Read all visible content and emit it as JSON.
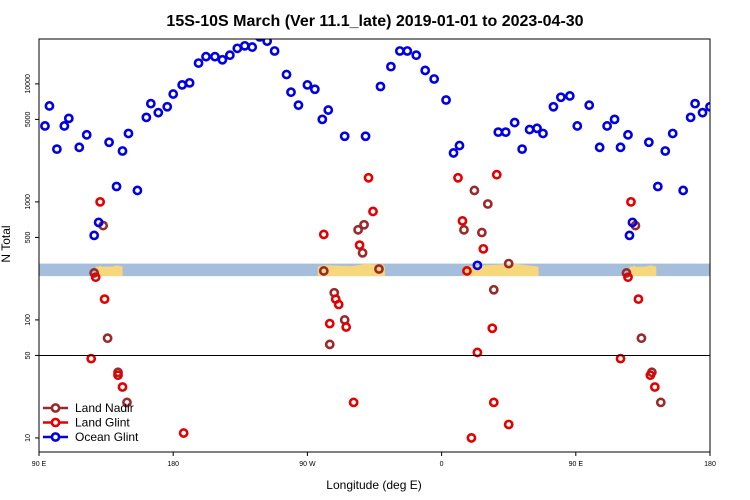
{
  "chart_data": {
    "type": "scatter",
    "title": "15S-10S March (Ver 11.1_late)   2019-01-01 to 2023-04-30",
    "xlabel": "Longitude (deg E)",
    "ylabel": "N Total",
    "xlim": [
      90,
      540
    ],
    "ylim": [
      7.6,
      24000
    ],
    "y_scale": "log",
    "x_ticks": [
      {
        "value": 90,
        "label": "90 E"
      },
      {
        "value": 180,
        "label": "180"
      },
      {
        "value": 270,
        "label": "90 W"
      },
      {
        "value": 360,
        "label": "0"
      },
      {
        "value": 450,
        "label": "90 E"
      },
      {
        "value": 540,
        "label": "180"
      }
    ],
    "y_ticks": [
      {
        "value": 10,
        "label": "10"
      },
      {
        "value": 50,
        "label": "50"
      },
      {
        "value": 100,
        "label": "100"
      },
      {
        "value": 500,
        "label": "500"
      },
      {
        "value": 1000,
        "label": "1000"
      },
      {
        "value": 5000,
        "label": "5000"
      },
      {
        "value": 10000,
        "label": "10000"
      }
    ],
    "reference_line_y": 50,
    "legend_position": "bottom-left",
    "band": {
      "y_min": 235,
      "y_max": 300,
      "color": "#a4bedc",
      "land_color": "#f7d77c"
    },
    "band_land": [
      [
        [
          128,
          283
        ],
        [
          130,
          283
        ],
        [
          131,
          290
        ],
        [
          132,
          283
        ],
        [
          139,
          283
        ],
        [
          142,
          290
        ],
        [
          146,
          283
        ]
      ],
      [
        [
          277,
          283
        ],
        [
          281,
          290
        ],
        [
          300,
          286
        ],
        [
          310,
          300
        ],
        [
          315,
          295
        ],
        [
          320,
          300
        ],
        [
          322,
          283
        ]
      ],
      [
        [
          375,
          283
        ],
        [
          385,
          289
        ],
        [
          400,
          295
        ],
        [
          408,
          300
        ],
        [
          425,
          283
        ]
      ],
      [
        [
          486,
          283
        ],
        [
          488,
          283
        ],
        [
          489,
          290
        ],
        [
          490,
          283
        ],
        [
          497,
          283
        ],
        [
          500,
          290
        ],
        [
          504,
          283
        ]
      ]
    ],
    "series": [
      {
        "name": "Land Nadir",
        "color": "#9a2a2a",
        "points": [
          [
            127,
            250
          ],
          [
            133,
            630
          ],
          [
            136,
            70
          ],
          [
            143,
            36
          ],
          [
            149,
            20
          ],
          [
            281,
            260
          ],
          [
            285,
            62
          ],
          [
            288,
            170
          ],
          [
            295,
            100
          ],
          [
            304,
            580
          ],
          [
            307,
            370
          ],
          [
            308,
            640
          ],
          [
            318,
            270
          ],
          [
            375,
            580
          ],
          [
            382,
            1250
          ],
          [
            387,
            550
          ],
          [
            391,
            960
          ],
          [
            395,
            180
          ],
          [
            405,
            300
          ],
          [
            484,
            250
          ],
          [
            490,
            630
          ],
          [
            494,
            70
          ],
          [
            501,
            36
          ],
          [
            507,
            20
          ]
        ]
      },
      {
        "name": "Land Glint",
        "color": "#e40000",
        "points": [
          [
            125,
            47
          ],
          [
            128,
            230
          ],
          [
            131,
            1000
          ],
          [
            134,
            150
          ],
          [
            143,
            34
          ],
          [
            146,
            27
          ],
          [
            187,
            11
          ],
          [
            281,
            530
          ],
          [
            285,
            93
          ],
          [
            289,
            150
          ],
          [
            291,
            135
          ],
          [
            296,
            87
          ],
          [
            301,
            20
          ],
          [
            305,
            430
          ],
          [
            311,
            1600
          ],
          [
            314,
            830
          ],
          [
            371,
            1600
          ],
          [
            374,
            690
          ],
          [
            377,
            260
          ],
          [
            380,
            10
          ],
          [
            384,
            53
          ],
          [
            388,
            400
          ],
          [
            394,
            85
          ],
          [
            397,
            1700
          ],
          [
            395,
            20
          ],
          [
            405,
            13
          ],
          [
            480,
            47
          ],
          [
            485,
            230
          ],
          [
            487,
            1000
          ],
          [
            492,
            150
          ],
          [
            500,
            34
          ],
          [
            503,
            27
          ]
        ]
      },
      {
        "name": "Ocean Glint",
        "color": "#0000e6",
        "points": [
          [
            94,
            4400
          ],
          [
            97,
            6500
          ],
          [
            102,
            2800
          ],
          [
            107,
            4400
          ],
          [
            110,
            5100
          ],
          [
            117,
            2900
          ],
          [
            122,
            3700
          ],
          [
            127,
            520
          ],
          [
            130,
            670
          ],
          [
            137,
            3200
          ],
          [
            142,
            1350
          ],
          [
            146,
            2700
          ],
          [
            150,
            3800
          ],
          [
            156,
            1250
          ],
          [
            162,
            5200
          ],
          [
            165,
            6800
          ],
          [
            170,
            5700
          ],
          [
            176,
            6400
          ],
          [
            180,
            8200
          ],
          [
            186,
            9800
          ],
          [
            191,
            10200
          ],
          [
            197,
            15000
          ],
          [
            202,
            17000
          ],
          [
            208,
            17000
          ],
          [
            213,
            16000
          ],
          [
            218,
            17500
          ],
          [
            223,
            20000
          ],
          [
            228,
            21000
          ],
          [
            233,
            20500
          ],
          [
            238,
            25000
          ],
          [
            243,
            23000
          ],
          [
            248,
            19000
          ],
          [
            256,
            12000
          ],
          [
            259,
            8500
          ],
          [
            264,
            6600
          ],
          [
            270,
            9800
          ],
          [
            275,
            9000
          ],
          [
            280,
            5000
          ],
          [
            284,
            6000
          ],
          [
            295,
            3600
          ],
          [
            309,
            3600
          ],
          [
            319,
            9500
          ],
          [
            326,
            14000
          ],
          [
            332,
            19000
          ],
          [
            337,
            19000
          ],
          [
            343,
            17500
          ],
          [
            349,
            13000
          ],
          [
            355,
            11000
          ],
          [
            363,
            7300
          ],
          [
            368,
            2600
          ],
          [
            372,
            3000
          ],
          [
            384,
            290
          ],
          [
            398,
            3900
          ],
          [
            403,
            3900
          ],
          [
            409,
            4700
          ],
          [
            414,
            2800
          ],
          [
            419,
            4100
          ],
          [
            424,
            4200
          ],
          [
            428,
            3800
          ],
          [
            435,
            6400
          ],
          [
            440,
            7700
          ],
          [
            446,
            7900
          ],
          [
            451,
            4400
          ],
          [
            459,
            6600
          ],
          [
            466,
            2900
          ],
          [
            471,
            4400
          ],
          [
            476,
            5000
          ],
          [
            480,
            2900
          ],
          [
            485,
            3700
          ],
          [
            486,
            520
          ],
          [
            488,
            670
          ],
          [
            499,
            3200
          ],
          [
            505,
            1350
          ],
          [
            510,
            2700
          ],
          [
            515,
            3800
          ],
          [
            522,
            1250
          ],
          [
            527,
            5200
          ],
          [
            530,
            6800
          ],
          [
            535,
            5700
          ],
          [
            540,
            6400
          ]
        ]
      }
    ]
  }
}
